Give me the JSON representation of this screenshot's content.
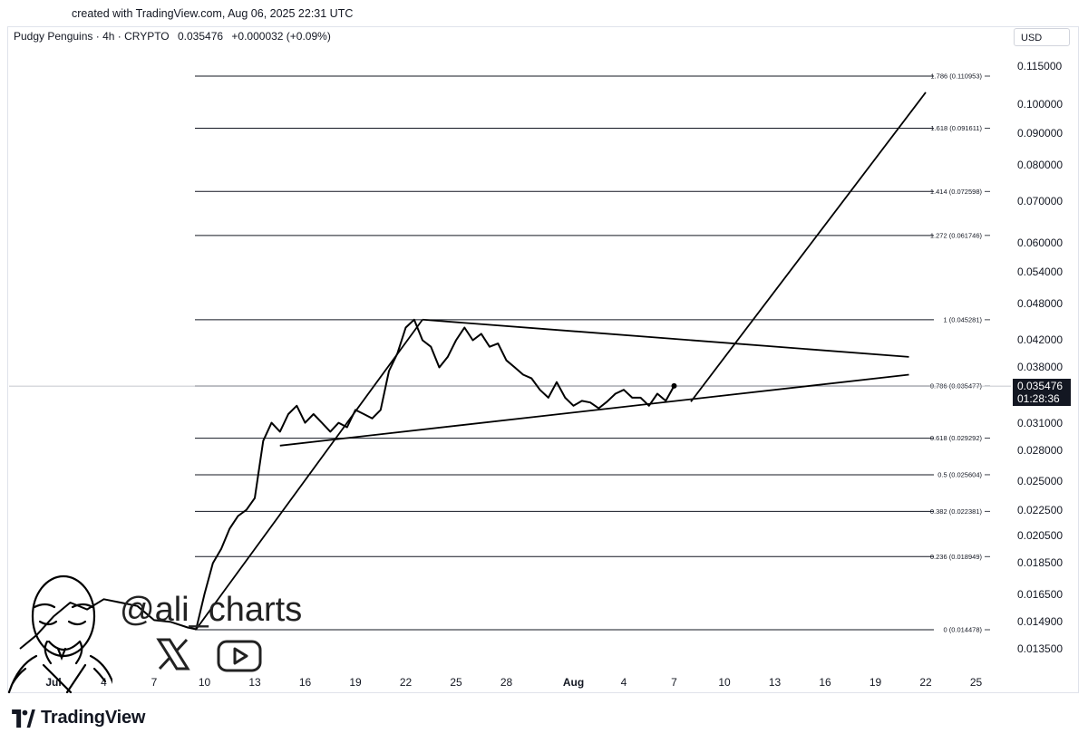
{
  "created_text": "created with TradingView.com, Aug 06, 2025 22:31 UTC",
  "header": {
    "symbol": "Pudgy Penguins · 4h · CRYPTO",
    "price": "0.035476",
    "change": "+0.000032 (+0.09%)"
  },
  "currency": "USD",
  "price_tag": {
    "price": "0.035476",
    "countdown": "01:28:36"
  },
  "watermark": {
    "handle": "@ali_charts",
    "social_icons": [
      "x-logo",
      "youtube-logo"
    ]
  },
  "brand": {
    "name": "TradingView"
  },
  "colors": {
    "line": "#000000",
    "grid": "#131722",
    "price_tag_bg": "#131722"
  },
  "chart_data": {
    "type": "line",
    "title": "",
    "xlabel": "",
    "ylabel": "",
    "y_scale": "log",
    "y_ticks": [
      "0.115000",
      "0.100000",
      "0.090000",
      "0.080000",
      "0.070000",
      "0.060000",
      "0.054000",
      "0.048000",
      "0.042000",
      "0.038000",
      "0.031000",
      "0.028000",
      "0.025000",
      "0.022500",
      "0.020500",
      "0.018500",
      "0.016500",
      "0.014900",
      "0.013500"
    ],
    "x_ticks": [
      {
        "label": "Jul",
        "date": "2025-07-01",
        "bold": true
      },
      {
        "label": "4",
        "date": "2025-07-04"
      },
      {
        "label": "7",
        "date": "2025-07-07"
      },
      {
        "label": "10",
        "date": "2025-07-10"
      },
      {
        "label": "13",
        "date": "2025-07-13"
      },
      {
        "label": "16",
        "date": "2025-07-16"
      },
      {
        "label": "19",
        "date": "2025-07-19"
      },
      {
        "label": "22",
        "date": "2025-07-22"
      },
      {
        "label": "25",
        "date": "2025-07-25"
      },
      {
        "label": "28",
        "date": "2025-07-28"
      },
      {
        "label": "Aug",
        "date": "2025-08-01",
        "bold": true
      },
      {
        "label": "4",
        "date": "2025-08-04"
      },
      {
        "label": "7",
        "date": "2025-08-07"
      },
      {
        "label": "10",
        "date": "2025-08-10"
      },
      {
        "label": "13",
        "date": "2025-08-13"
      },
      {
        "label": "16",
        "date": "2025-08-16"
      },
      {
        "label": "19",
        "date": "2025-08-19"
      },
      {
        "label": "22",
        "date": "2025-08-22"
      },
      {
        "label": "25",
        "date": "2025-08-25"
      }
    ],
    "fib_levels": [
      {
        "label": "1.786 (0.110953)",
        "value": 0.110953
      },
      {
        "label": "1.618 (0.091611)",
        "value": 0.091611
      },
      {
        "label": "1.414 (0.072598)",
        "value": 0.072598
      },
      {
        "label": "1.272 (0.061746)",
        "value": 0.061746
      },
      {
        "label": "1 (0.045281)",
        "value": 0.045281
      },
      {
        "label": "0.786 (0.035477)",
        "value": 0.035477
      },
      {
        "label": "0.618 (0.029292)",
        "value": 0.029292
      },
      {
        "label": "0.5 (0.025604)",
        "value": 0.025604
      },
      {
        "label": "0.382 (0.022381)",
        "value": 0.022381
      },
      {
        "label": "0.236 (0.018949)",
        "value": 0.018949
      },
      {
        "label": "0 (0.014478)",
        "value": 0.014478
      }
    ],
    "series": [
      {
        "x": [
          "2025-06-29",
          "2025-06-30",
          "2025-07-01",
          "2025-07-02",
          "2025-07-03",
          "2025-07-04",
          "2025-07-05",
          "2025-07-06",
          "2025-07-07",
          "2025-07-08",
          "2025-07-09",
          "2025-07-09 12:00",
          "2025-07-10",
          "2025-07-10 12:00",
          "2025-07-11",
          "2025-07-11 12:00",
          "2025-07-12",
          "2025-07-12 12:00",
          "2025-07-13",
          "2025-07-13 12:00",
          "2025-07-14",
          "2025-07-14 12:00",
          "2025-07-15",
          "2025-07-15 12:00",
          "2025-07-16",
          "2025-07-16 12:00",
          "2025-07-17",
          "2025-07-17 12:00",
          "2025-07-18",
          "2025-07-18 12:00",
          "2025-07-19",
          "2025-07-19 12:00",
          "2025-07-20",
          "2025-07-20 12:00",
          "2025-07-21",
          "2025-07-21 12:00",
          "2025-07-22",
          "2025-07-22 12:00",
          "2025-07-23",
          "2025-07-23 12:00",
          "2025-07-24",
          "2025-07-24 12:00",
          "2025-07-25",
          "2025-07-25 12:00",
          "2025-07-26",
          "2025-07-26 12:00",
          "2025-07-27",
          "2025-07-27 12:00",
          "2025-07-28",
          "2025-07-28 12:00",
          "2025-07-29",
          "2025-07-29 12:00",
          "2025-07-30",
          "2025-07-30 12:00",
          "2025-07-31",
          "2025-07-31 12:00",
          "2025-08-01",
          "2025-08-01 12:00",
          "2025-08-02",
          "2025-08-02 12:00",
          "2025-08-03",
          "2025-08-03 12:00",
          "2025-08-04",
          "2025-08-04 12:00",
          "2025-08-05",
          "2025-08-05 12:00",
          "2025-08-06",
          "2025-08-06 12:00",
          "2025-08-07"
        ],
        "y": [
          0.0135,
          0.0142,
          0.0152,
          0.016,
          0.0156,
          0.0162,
          0.016,
          0.0158,
          0.015,
          0.0149,
          0.0146,
          0.0145,
          0.0165,
          0.0185,
          0.0195,
          0.021,
          0.022,
          0.0225,
          0.0235,
          0.029,
          0.031,
          0.03,
          0.032,
          0.033,
          0.031,
          0.032,
          0.031,
          0.03,
          0.031,
          0.0305,
          0.0325,
          0.032,
          0.0315,
          0.0325,
          0.0375,
          0.04,
          0.044,
          0.0453,
          0.042,
          0.041,
          0.038,
          0.0395,
          0.042,
          0.044,
          0.042,
          0.043,
          0.041,
          0.0415,
          0.039,
          0.038,
          0.037,
          0.0365,
          0.035,
          0.034,
          0.036,
          0.034,
          0.033,
          0.0336,
          0.0334,
          0.0327,
          0.0335,
          0.0345,
          0.035,
          0.034,
          0.034,
          0.033,
          0.0345,
          0.0336,
          0.0355
        ]
      }
    ],
    "trendlines": [
      {
        "name": "impulse",
        "points": [
          {
            "x": "2025-07-09 12:00",
            "y": 0.0145
          },
          {
            "x": "2025-07-23",
            "y": 0.0453
          }
        ]
      },
      {
        "name": "upper",
        "points": [
          {
            "x": "2025-07-23",
            "y": 0.0453
          },
          {
            "x": "2025-08-21",
            "y": 0.0395
          }
        ]
      },
      {
        "name": "lower",
        "points": [
          {
            "x": "2025-07-14 12:00",
            "y": 0.0285
          },
          {
            "x": "2025-08-21",
            "y": 0.037
          }
        ]
      },
      {
        "name": "projection",
        "points": [
          {
            "x": "2025-08-08",
            "y": 0.0335
          },
          {
            "x": "2025-08-22",
            "y": 0.1045
          }
        ]
      }
    ]
  }
}
